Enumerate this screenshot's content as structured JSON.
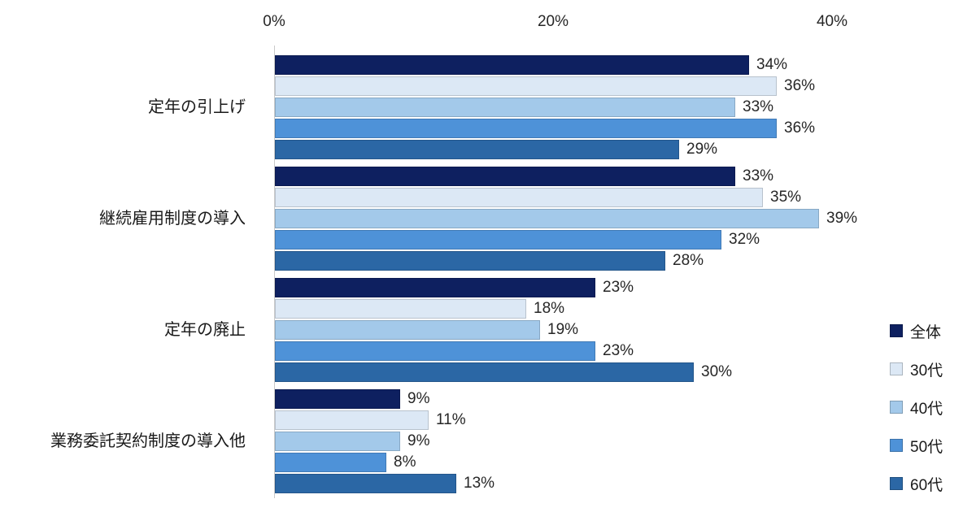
{
  "chart_data": {
    "type": "bar",
    "orientation": "horizontal",
    "title": "",
    "categories": [
      "定年の引上げ",
      "継続雇用制度の導入",
      "定年の廃止",
      "業務委託契約制度の導入他"
    ],
    "series": [
      {
        "name": "全体",
        "color": "#0E2060",
        "values": [
          34,
          33,
          23,
          9
        ]
      },
      {
        "name": "30代",
        "color": "#DCE8F5",
        "values": [
          36,
          35,
          18,
          11
        ]
      },
      {
        "name": "40代",
        "color": "#A3C9EA",
        "values": [
          33,
          39,
          19,
          9
        ]
      },
      {
        "name": "50代",
        "color": "#4E92D8",
        "values": [
          36,
          32,
          23,
          8
        ]
      },
      {
        "name": "60代",
        "color": "#2B67A5",
        "values": [
          29,
          28,
          30,
          13
        ]
      }
    ],
    "x_ticks": [
      {
        "label": "0%",
        "value": 0
      },
      {
        "label": "20%",
        "value": 20
      },
      {
        "label": "40%",
        "value": 40
      }
    ],
    "x_range": [
      0,
      40
    ],
    "value_suffix": "%",
    "data_labels": true,
    "legend_position": "right",
    "grid": false
  }
}
